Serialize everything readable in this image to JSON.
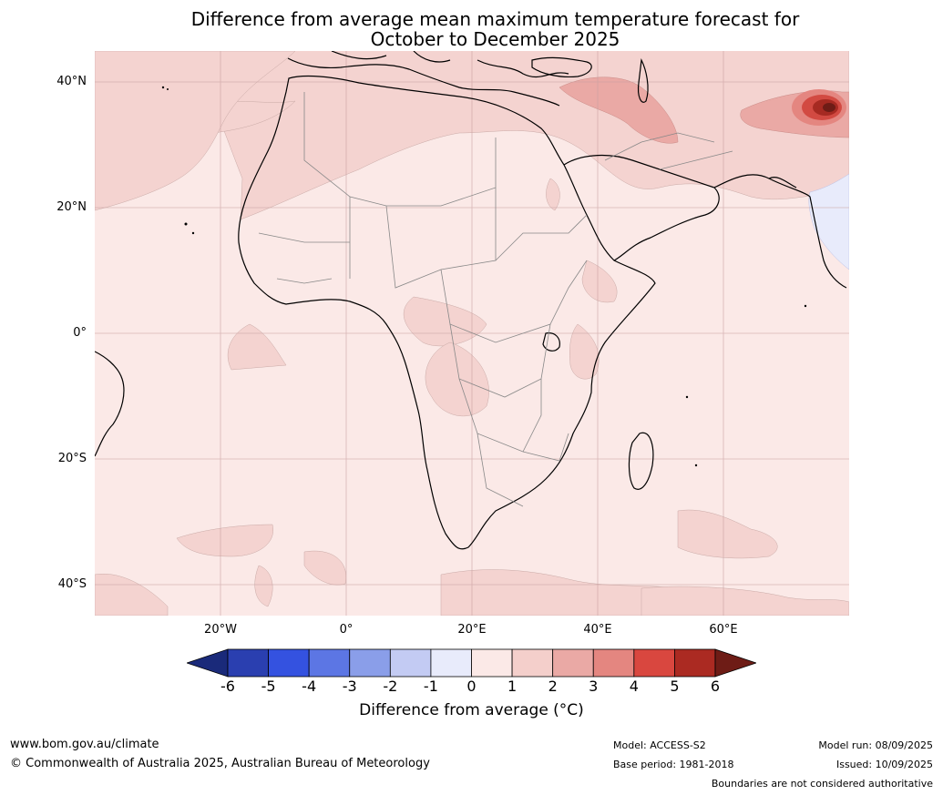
{
  "title": {
    "line1": "Difference from average mean maximum temperature forecast for",
    "line2": "October to December 2025"
  },
  "axes": {
    "lat_labels": [
      "40°N",
      "20°N",
      "0°",
      "20°S",
      "40°S"
    ],
    "lon_labels": [
      "20°W",
      "0°",
      "20°E",
      "40°E",
      "60°E"
    ]
  },
  "colorbar": {
    "ticks": [
      "-6",
      "-5",
      "-4",
      "-3",
      "-2",
      "-1",
      "0",
      "1",
      "2",
      "3",
      "4",
      "5",
      "6"
    ],
    "colors": [
      "#1a2a7a",
      "#2a3fb0",
      "#3452e0",
      "#5c76e4",
      "#8a9ee9",
      "#c3cbf3",
      "#e8ebfb",
      "#fbe9e7",
      "#f4cfcb",
      "#eaa9a5",
      "#e48680",
      "#d9473f",
      "#ab2a22",
      "#6e1c16"
    ],
    "label": "Difference from average (°C)"
  },
  "map_colors": {
    "ocean_bg": "#fbe9e7",
    "band_1_2": "#f4d3d0",
    "band_2_3": "#eaa9a5",
    "band_3_4": "#e48680",
    "band_4_5": "#d24a42",
    "band_5_6": "#a62a22",
    "cool_band": "#e8ebfb"
  },
  "footer": {
    "website": "www.bom.gov.au/climate",
    "copyright": "© Commonwealth of Australia 2025, Australian Bureau of Meteorology",
    "model": "Model: ACCESS-S2",
    "base_period": "Base period: 1981-2018",
    "model_run": "Model run: 08/09/2025",
    "issued": "Issued: 10/09/2025",
    "disclaimer": "Boundaries are not considered authoritative"
  }
}
